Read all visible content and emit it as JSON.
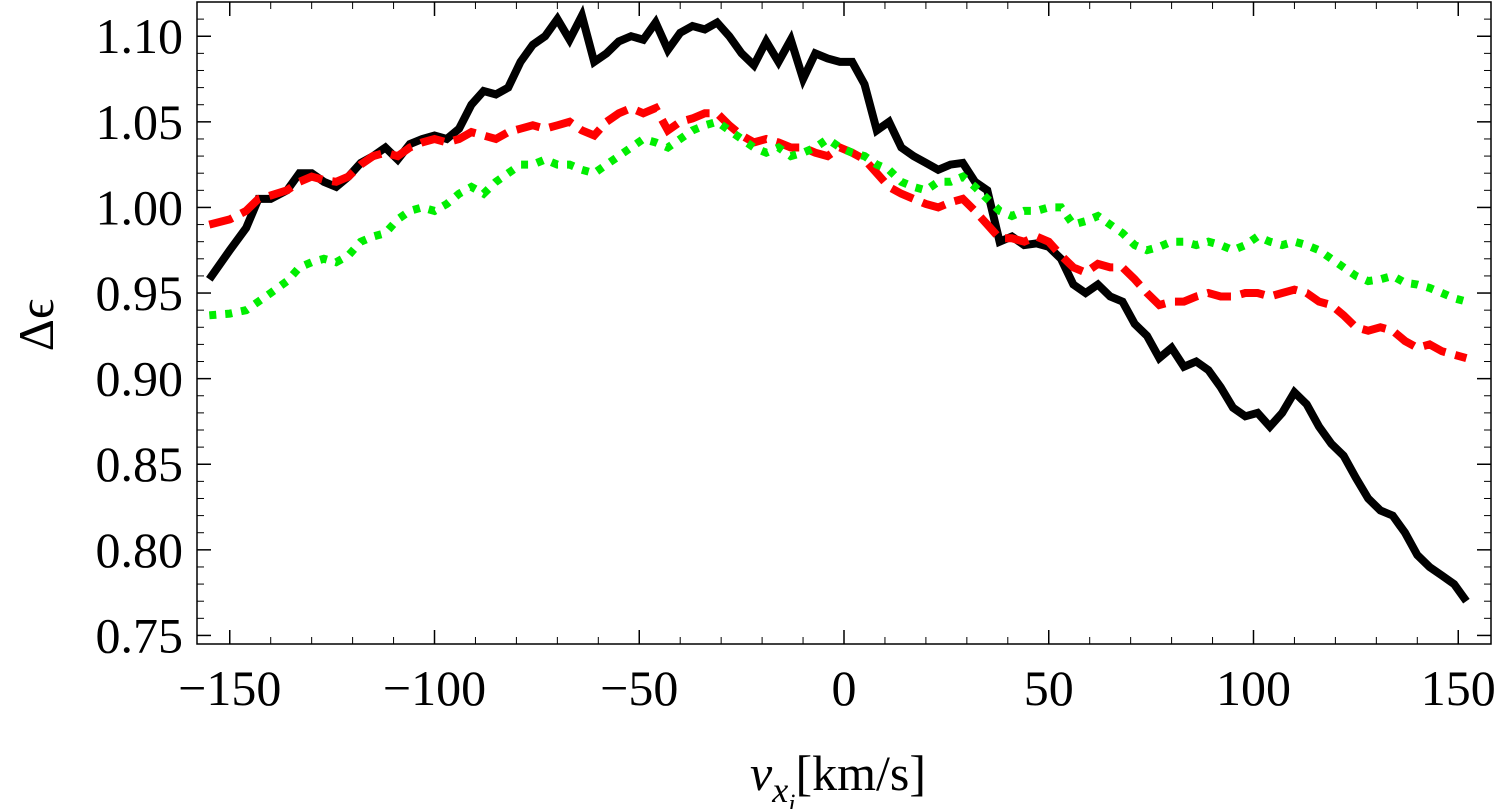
{
  "chart_data": {
    "type": "line",
    "title": "",
    "xlabel": {
      "main": "v",
      "sub1": "x",
      "sub2": "i",
      "unit": "[km/s]"
    },
    "ylabel": "Δϵ",
    "xlim": [
      -158,
      158
    ],
    "ylim": [
      0.745,
      1.12
    ],
    "x_ticks": [
      -150,
      -100,
      -50,
      0,
      50,
      100,
      150
    ],
    "x_tick_labels": [
      "−150",
      "−100",
      "−50",
      "0",
      "50",
      "100",
      "150"
    ],
    "y_ticks": [
      0.75,
      0.8,
      0.85,
      0.9,
      0.95,
      1.0,
      1.05,
      1.1
    ],
    "y_tick_labels": [
      "0.75",
      "0.80",
      "0.85",
      "0.90",
      "0.95",
      "1.00",
      "1.05",
      "1.10"
    ],
    "grid": false,
    "series": [
      {
        "color": "#000000",
        "style": "solid",
        "x": [
          -155,
          -150,
          -146,
          -143,
          -140,
          -136,
          -133,
          -130,
          -127,
          -124,
          -121,
          -118,
          -115,
          -112,
          -109,
          -106,
          -103,
          -100,
          -97,
          -94,
          -91,
          -88,
          -85,
          -82,
          -79,
          -76,
          -73,
          -70,
          -67,
          -64,
          -61,
          -58,
          -55,
          -52,
          -49,
          -46,
          -43,
          -40,
          -37,
          -34,
          -31,
          -28,
          -25,
          -22,
          -19,
          -16,
          -13,
          -10,
          -7,
          -4,
          -1,
          2,
          5,
          8,
          11,
          14,
          17,
          20,
          23,
          26,
          29,
          32,
          35,
          38,
          41,
          44,
          47,
          50,
          53,
          56,
          59,
          62,
          65,
          68,
          71,
          74,
          77,
          80,
          83,
          86,
          89,
          92,
          95,
          98,
          101,
          104,
          107,
          110,
          113,
          116,
          119,
          122,
          125,
          128,
          131,
          134,
          137,
          140,
          143,
          146,
          149,
          152
        ],
        "values": [
          0.958,
          0.975,
          0.988,
          1.005,
          1.005,
          1.01,
          1.02,
          1.02,
          1.015,
          1.012,
          1.018,
          1.026,
          1.03,
          1.035,
          1.028,
          1.037,
          1.04,
          1.042,
          1.04,
          1.046,
          1.06,
          1.068,
          1.066,
          1.07,
          1.085,
          1.095,
          1.1,
          1.11,
          1.098,
          1.112,
          1.085,
          1.09,
          1.097,
          1.1,
          1.098,
          1.108,
          1.092,
          1.102,
          1.106,
          1.104,
          1.108,
          1.1,
          1.09,
          1.083,
          1.097,
          1.085,
          1.098,
          1.075,
          1.09,
          1.087,
          1.085,
          1.085,
          1.072,
          1.045,
          1.05,
          1.035,
          1.03,
          1.026,
          1.022,
          1.025,
          1.026,
          1.015,
          1.01,
          0.98,
          0.983,
          0.978,
          0.979,
          0.977,
          0.97,
          0.955,
          0.95,
          0.955,
          0.948,
          0.945,
          0.932,
          0.925,
          0.912,
          0.918,
          0.907,
          0.91,
          0.905,
          0.895,
          0.883,
          0.878,
          0.88,
          0.872,
          0.88,
          0.892,
          0.885,
          0.872,
          0.862,
          0.855,
          0.842,
          0.83,
          0.823,
          0.82,
          0.81,
          0.797,
          0.79,
          0.785,
          0.78,
          0.77
        ]
      },
      {
        "color": "#ff0000",
        "style": "dashed",
        "x": [
          -155,
          -150,
          -146,
          -143,
          -140,
          -136,
          -133,
          -130,
          -127,
          -124,
          -121,
          -118,
          -115,
          -112,
          -109,
          -106,
          -103,
          -100,
          -97,
          -94,
          -91,
          -88,
          -85,
          -82,
          -79,
          -76,
          -73,
          -70,
          -67,
          -64,
          -61,
          -58,
          -55,
          -52,
          -49,
          -46,
          -43,
          -40,
          -37,
          -34,
          -31,
          -28,
          -25,
          -22,
          -19,
          -16,
          -13,
          -10,
          -7,
          -4,
          -1,
          2,
          5,
          8,
          11,
          14,
          17,
          20,
          23,
          26,
          29,
          32,
          35,
          38,
          41,
          44,
          47,
          50,
          53,
          56,
          59,
          62,
          65,
          68,
          71,
          74,
          77,
          80,
          83,
          86,
          89,
          92,
          95,
          98,
          101,
          104,
          107,
          110,
          113,
          116,
          119,
          122,
          125,
          128,
          131,
          134,
          137,
          140,
          143,
          146,
          149,
          152
        ],
        "values": [
          0.99,
          0.993,
          0.998,
          1.005,
          1.007,
          1.01,
          1.015,
          1.018,
          1.016,
          1.015,
          1.018,
          1.025,
          1.03,
          1.032,
          1.03,
          1.035,
          1.038,
          1.04,
          1.038,
          1.04,
          1.044,
          1.042,
          1.04,
          1.044,
          1.046,
          1.048,
          1.046,
          1.048,
          1.05,
          1.045,
          1.042,
          1.05,
          1.055,
          1.058,
          1.055,
          1.058,
          1.045,
          1.05,
          1.052,
          1.055,
          1.055,
          1.048,
          1.042,
          1.038,
          1.04,
          1.038,
          1.035,
          1.035,
          1.032,
          1.03,
          1.035,
          1.032,
          1.028,
          1.02,
          1.012,
          1.008,
          1.005,
          1.002,
          1.0,
          1.003,
          1.005,
          0.998,
          0.99,
          0.982,
          0.982,
          0.98,
          0.983,
          0.98,
          0.972,
          0.965,
          0.962,
          0.967,
          0.965,
          0.965,
          0.958,
          0.95,
          0.943,
          0.945,
          0.945,
          0.948,
          0.95,
          0.948,
          0.948,
          0.95,
          0.95,
          0.948,
          0.95,
          0.952,
          0.95,
          0.945,
          0.943,
          0.937,
          0.93,
          0.928,
          0.93,
          0.928,
          0.922,
          0.918,
          0.92,
          0.916,
          0.914,
          0.912
        ]
      },
      {
        "color": "#00ee00",
        "style": "dotted",
        "x": [
          -155,
          -150,
          -146,
          -143,
          -140,
          -136,
          -133,
          -130,
          -127,
          -124,
          -121,
          -118,
          -115,
          -112,
          -109,
          -106,
          -103,
          -100,
          -97,
          -94,
          -91,
          -88,
          -85,
          -82,
          -79,
          -76,
          -73,
          -70,
          -67,
          -64,
          -61,
          -58,
          -55,
          -52,
          -49,
          -46,
          -43,
          -40,
          -37,
          -34,
          -31,
          -28,
          -25,
          -22,
          -19,
          -16,
          -13,
          -10,
          -7,
          -4,
          -1,
          2,
          5,
          8,
          11,
          14,
          17,
          20,
          23,
          26,
          29,
          32,
          35,
          38,
          41,
          44,
          47,
          50,
          53,
          56,
          59,
          62,
          65,
          68,
          71,
          74,
          77,
          80,
          83,
          86,
          89,
          92,
          95,
          98,
          101,
          104,
          107,
          110,
          113,
          116,
          119,
          122,
          125,
          128,
          131,
          134,
          137,
          140,
          143,
          146,
          149,
          152
        ],
        "values": [
          0.937,
          0.938,
          0.94,
          0.945,
          0.95,
          0.957,
          0.965,
          0.968,
          0.97,
          0.968,
          0.972,
          0.98,
          0.983,
          0.985,
          0.993,
          0.998,
          1.0,
          0.998,
          1.002,
          1.008,
          1.012,
          1.008,
          1.015,
          1.02,
          1.025,
          1.025,
          1.028,
          1.025,
          1.025,
          1.022,
          1.02,
          1.025,
          1.03,
          1.035,
          1.04,
          1.038,
          1.035,
          1.04,
          1.045,
          1.048,
          1.05,
          1.045,
          1.04,
          1.035,
          1.032,
          1.035,
          1.03,
          1.032,
          1.035,
          1.04,
          1.035,
          1.032,
          1.03,
          1.025,
          1.022,
          1.015,
          1.012,
          1.01,
          1.015,
          1.015,
          1.018,
          1.012,
          1.005,
          0.998,
          0.995,
          0.998,
          0.998,
          1.0,
          1.0,
          0.99,
          0.992,
          0.995,
          0.99,
          0.985,
          0.978,
          0.975,
          0.977,
          0.98,
          0.98,
          0.978,
          0.98,
          0.978,
          0.975,
          0.978,
          0.983,
          0.98,
          0.978,
          0.98,
          0.978,
          0.975,
          0.97,
          0.965,
          0.96,
          0.957,
          0.958,
          0.96,
          0.956,
          0.955,
          0.953,
          0.95,
          0.947,
          0.945
        ]
      }
    ]
  }
}
